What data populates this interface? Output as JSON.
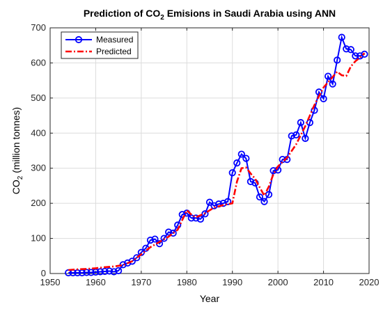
{
  "chart_data": {
    "type": "line",
    "title": {
      "prefix": "Prediction of CO",
      "sub": "2",
      "suffix": " Emisions in Saudi Arabia using ANN"
    },
    "xlabel": "Year",
    "ylabel": {
      "prefix": "CO",
      "sub": "2",
      "suffix": " (million tonnes)"
    },
    "xlim": [
      1950,
      2020
    ],
    "ylim": [
      0,
      700
    ],
    "xticks": [
      1950,
      1960,
      1970,
      1980,
      1990,
      2000,
      2010,
      2020
    ],
    "yticks": [
      0,
      100,
      200,
      300,
      400,
      500,
      600,
      700
    ],
    "grid": true,
    "legend_position": "top-left",
    "series": [
      {
        "name": "Measured",
        "color": "#0000ff",
        "style": "solid-circles",
        "x": [
          1954,
          1955,
          1956,
          1957,
          1958,
          1959,
          1960,
          1961,
          1962,
          1963,
          1964,
          1965,
          1966,
          1967,
          1968,
          1969,
          1970,
          1971,
          1972,
          1973,
          1974,
          1975,
          1976,
          1977,
          1978,
          1979,
          1980,
          1981,
          1982,
          1983,
          1984,
          1985,
          1986,
          1987,
          1988,
          1989,
          1990,
          1991,
          1992,
          1993,
          1994,
          1995,
          1996,
          1997,
          1998,
          1999,
          2000,
          2001,
          2002,
          2003,
          2004,
          2005,
          2006,
          2007,
          2008,
          2009,
          2010,
          2011,
          2012,
          2013,
          2014,
          2015,
          2016,
          2017,
          2018,
          2019
        ],
        "y": [
          2,
          2,
          2,
          2,
          3,
          3,
          4,
          5,
          6,
          7,
          5,
          8,
          25,
          30,
          35,
          45,
          60,
          72,
          95,
          98,
          85,
          100,
          118,
          115,
          138,
          168,
          172,
          158,
          158,
          155,
          170,
          203,
          193,
          198,
          200,
          205,
          287,
          315,
          340,
          328,
          262,
          258,
          218,
          205,
          225,
          293,
          295,
          325,
          325,
          392,
          395,
          430,
          385,
          430,
          465,
          517,
          498,
          562,
          540,
          608,
          673,
          640,
          638,
          620,
          620,
          625
        ]
      },
      {
        "name": "Predicted",
        "color": "#ff0000",
        "style": "dash-dot",
        "x": [
          1954,
          1956,
          1958,
          1960,
          1962,
          1964,
          1966,
          1968,
          1970,
          1972,
          1974,
          1976,
          1978,
          1980,
          1981,
          1982,
          1984,
          1986,
          1988,
          1990,
          1991,
          1992,
          1993,
          1994,
          1995,
          1996,
          1997,
          1998,
          1999,
          2000,
          2002,
          2004,
          2006,
          2008,
          2010,
          2012,
          2013,
          2014,
          2015,
          2016,
          2017,
          2018,
          2019
        ],
        "y": [
          10,
          12,
          13,
          15,
          18,
          20,
          24,
          35,
          55,
          75,
          90,
          105,
          125,
          180,
          168,
          160,
          172,
          188,
          195,
          200,
          262,
          300,
          302,
          285,
          270,
          245,
          222,
          248,
          283,
          305,
          330,
          368,
          420,
          480,
          530,
          560,
          575,
          565,
          563,
          590,
          605,
          615,
          628
        ]
      }
    ]
  }
}
